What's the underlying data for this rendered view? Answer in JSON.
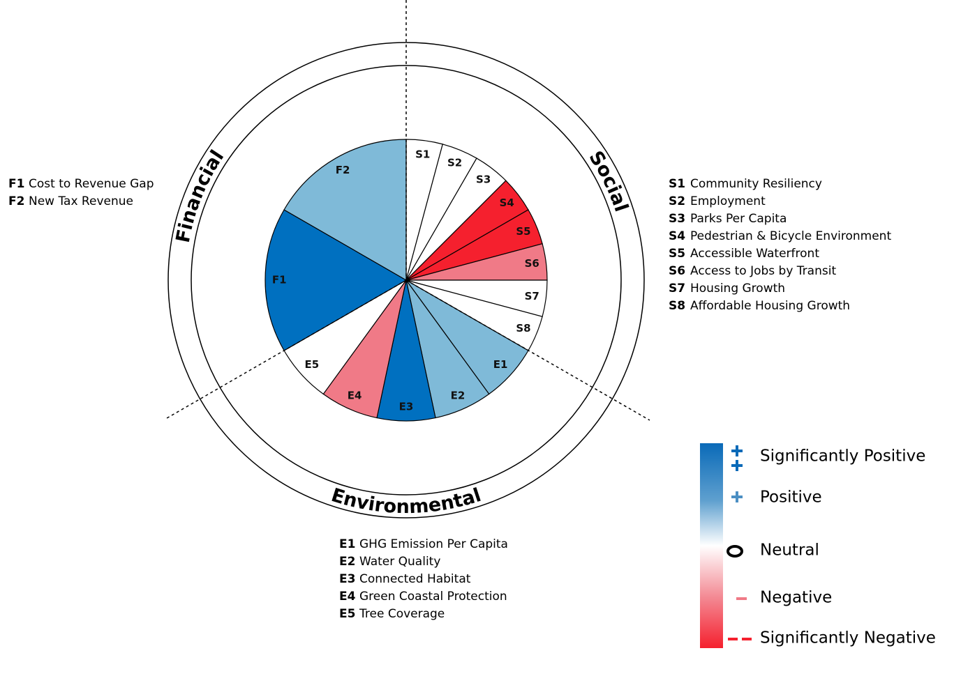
{
  "sections": [
    {
      "label": "Social",
      "slices": [
        {
          "code": "S1",
          "name": "Community Resiliency",
          "color": "#ffffff"
        },
        {
          "code": "S2",
          "name": "Employment",
          "color": "#ffffff"
        },
        {
          "code": "S3",
          "name": "Parks Per Capita",
          "color": "#ffffff"
        },
        {
          "code": "S4",
          "name": "Pedestrian & Bicycle Environment",
          "color": "#f5202e"
        },
        {
          "code": "S5",
          "name": "Accessible Waterfront",
          "color": "#f5202e"
        },
        {
          "code": "S6",
          "name": "Access to Jobs by Transit",
          "color": "#f07a87"
        },
        {
          "code": "S7",
          "name": "Housing Growth",
          "color": "#ffffff"
        },
        {
          "code": "S8",
          "name": "Affordable Housing Growth",
          "color": "#ffffff"
        }
      ]
    },
    {
      "label": "Environmental",
      "slices": [
        {
          "code": "E1",
          "name": "GHG Emission Per Capita",
          "color": "#7fbad8"
        },
        {
          "code": "E2",
          "name": "Water Quality",
          "color": "#7fbad8"
        },
        {
          "code": "E3",
          "name": "Connected Habitat",
          "color": "#0070c0"
        },
        {
          "code": "E4",
          "name": "Green Coastal Protection",
          "color": "#f07a87"
        },
        {
          "code": "E5",
          "name": "Tree Coverage",
          "color": "#ffffff"
        }
      ]
    },
    {
      "label": "Financial",
      "slices": [
        {
          "code": "F1",
          "name": "Cost to Revenue Gap",
          "color": "#0070c0"
        },
        {
          "code": "F2",
          "name": "New Tax Revenue",
          "color": "#7fbad8"
        }
      ]
    }
  ],
  "legend": {
    "items": [
      {
        "label": "Significantly Positive"
      },
      {
        "label": "Positive"
      },
      {
        "label": "Neutral"
      },
      {
        "label": "Negative"
      },
      {
        "label": "Significantly Negative"
      }
    ]
  }
}
